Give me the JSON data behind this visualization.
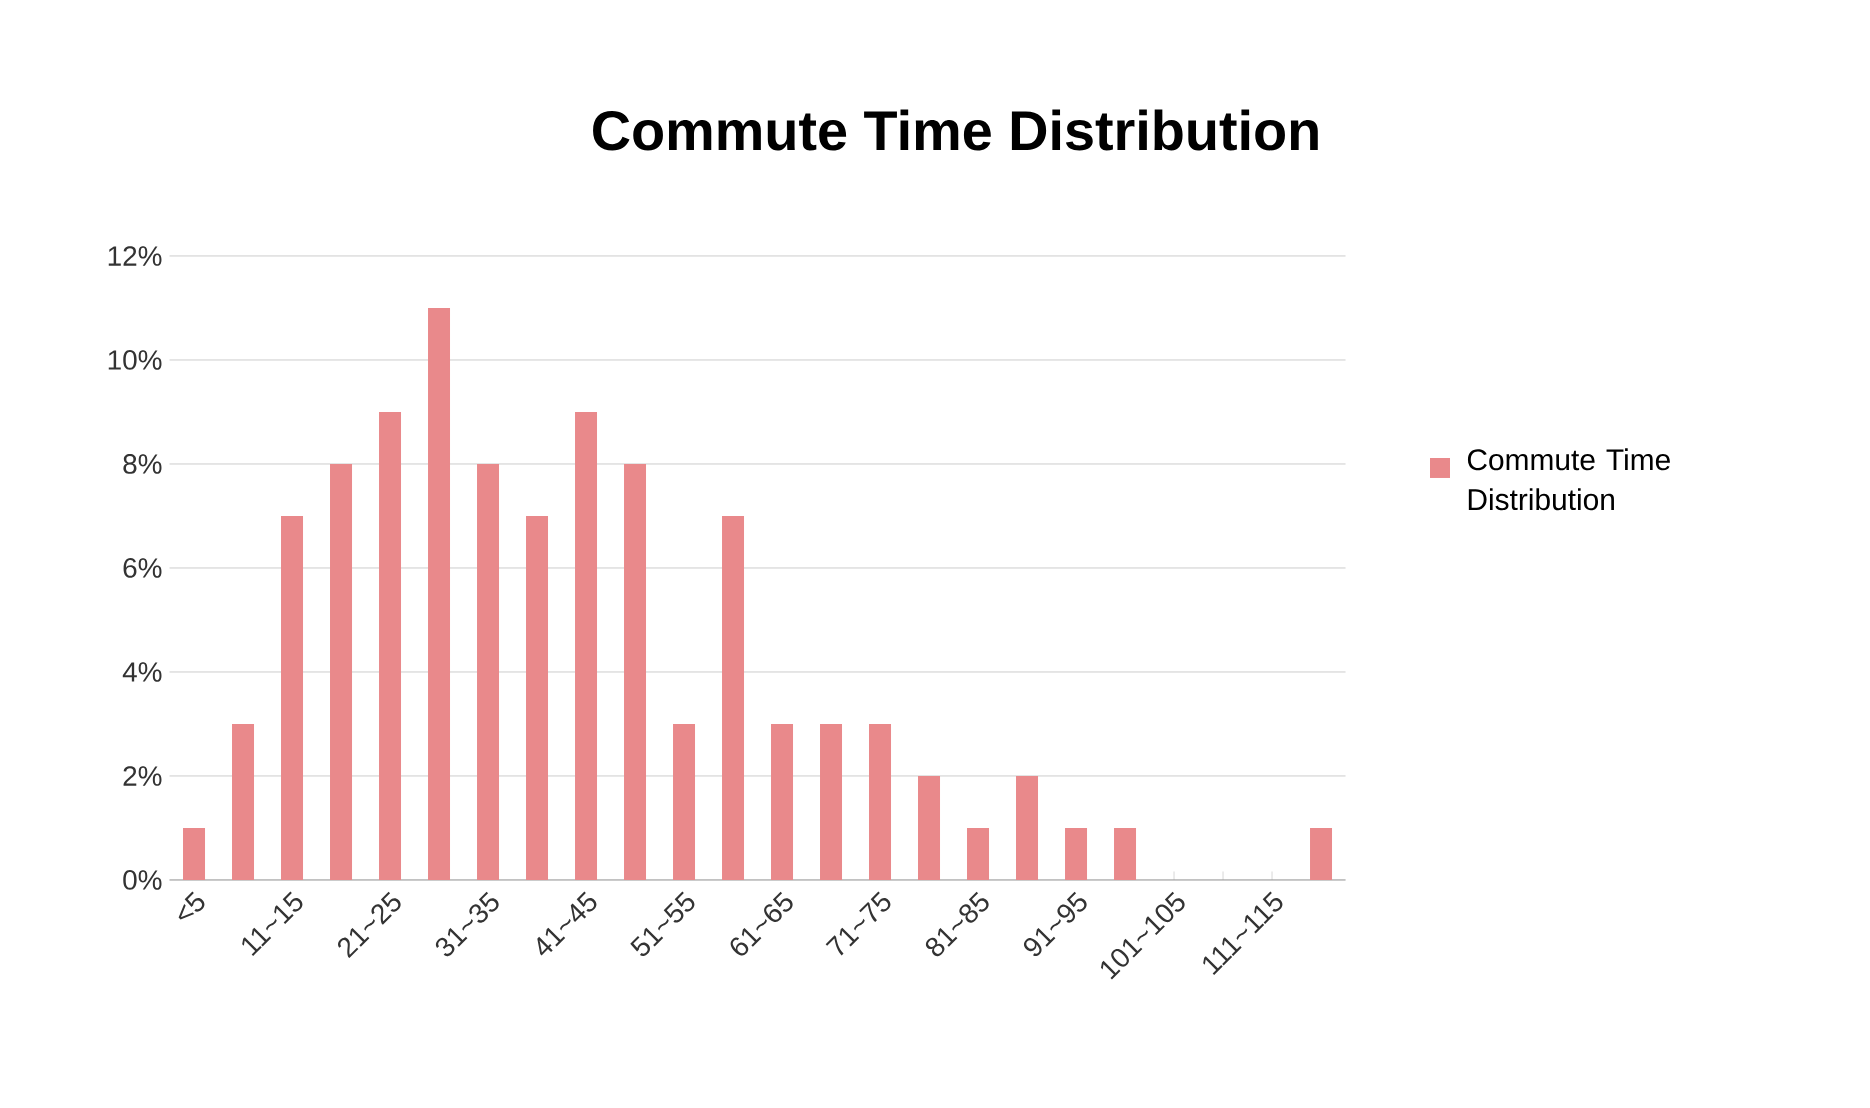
{
  "chart_data": {
    "type": "bar",
    "title": "Commute Time Distribution",
    "categories": [
      "<5",
      null,
      "11~15",
      null,
      "21~25",
      null,
      "31~35",
      null,
      "41~45",
      null,
      "51~55",
      null,
      "61~65",
      null,
      "71~75",
      null,
      "81~85",
      null,
      "91~95",
      null,
      "101~105",
      null,
      "111~115",
      null
    ],
    "series": [
      {
        "name": "Commute Time Distribution",
        "color": "#e9898b",
        "values": [
          1,
          3,
          7,
          8,
          9,
          11,
          8,
          7,
          9,
          8,
          3,
          7,
          3,
          3,
          3,
          2,
          1,
          2,
          1,
          1,
          0,
          0,
          0,
          1
        ]
      }
    ],
    "ylim": [
      0,
      12
    ],
    "yticks": [
      {
        "value": 0,
        "label": "0%"
      },
      {
        "value": 2,
        "label": "2%"
      },
      {
        "value": 4,
        "label": "4%"
      },
      {
        "value": 6,
        "label": "6%"
      },
      {
        "value": 8,
        "label": "8%"
      },
      {
        "value": 10,
        "label": "10%"
      },
      {
        "value": 12,
        "label": "12%"
      }
    ],
    "grid": "y",
    "legend": "right"
  }
}
